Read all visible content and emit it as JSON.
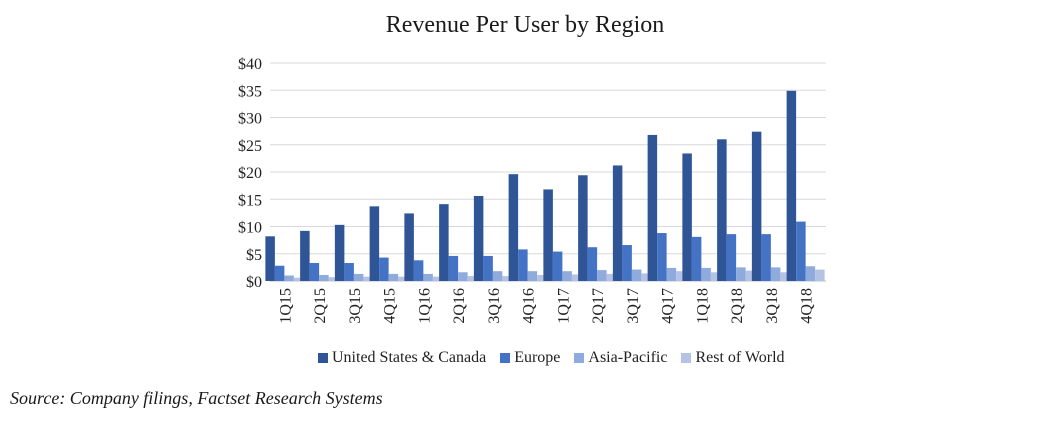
{
  "chart_data": {
    "type": "bar",
    "title": "Revenue Per User by Region",
    "xlabel": "",
    "ylabel": "",
    "ylim": [
      0,
      40
    ],
    "yticks": [
      0,
      5,
      10,
      15,
      20,
      25,
      30,
      35,
      40
    ],
    "ytick_labels": [
      "$0",
      "$5",
      "$10",
      "$15",
      "$20",
      "$25",
      "$30",
      "$35",
      "$40"
    ],
    "grid": true,
    "legend_position": "bottom",
    "categories": [
      "1Q15",
      "2Q15",
      "3Q15",
      "4Q15",
      "1Q16",
      "2Q16",
      "3Q16",
      "4Q16",
      "1Q17",
      "2Q17",
      "3Q17",
      "4Q17",
      "1Q18",
      "2Q18",
      "3Q18",
      "4Q18"
    ],
    "series": [
      {
        "name": "United States & Canada",
        "color": "#2f5597",
        "values": [
          8.2,
          9.2,
          10.3,
          13.7,
          12.4,
          14.1,
          15.6,
          19.6,
          16.8,
          19.4,
          21.2,
          26.8,
          23.4,
          26.0,
          27.4,
          34.9
        ]
      },
      {
        "name": "Europe",
        "color": "#4472c4",
        "values": [
          2.8,
          3.3,
          3.3,
          4.3,
          3.8,
          4.6,
          4.6,
          5.8,
          5.4,
          6.2,
          6.6,
          8.8,
          8.1,
          8.6,
          8.6,
          10.9
        ]
      },
      {
        "name": "Asia-Pacific",
        "color": "#8faadc",
        "values": [
          1.0,
          1.1,
          1.3,
          1.3,
          1.3,
          1.6,
          1.8,
          1.8,
          1.8,
          2.0,
          2.1,
          2.4,
          2.4,
          2.5,
          2.5,
          2.7
        ]
      },
      {
        "name": "Rest of World",
        "color": "#b4c2e6",
        "values": [
          0.6,
          0.7,
          0.8,
          0.8,
          0.8,
          0.9,
          0.9,
          1.1,
          1.2,
          1.3,
          1.4,
          1.8,
          1.6,
          1.9,
          1.6,
          2.1
        ]
      }
    ]
  },
  "source": "Source: Company filings, Factset Research Systems"
}
